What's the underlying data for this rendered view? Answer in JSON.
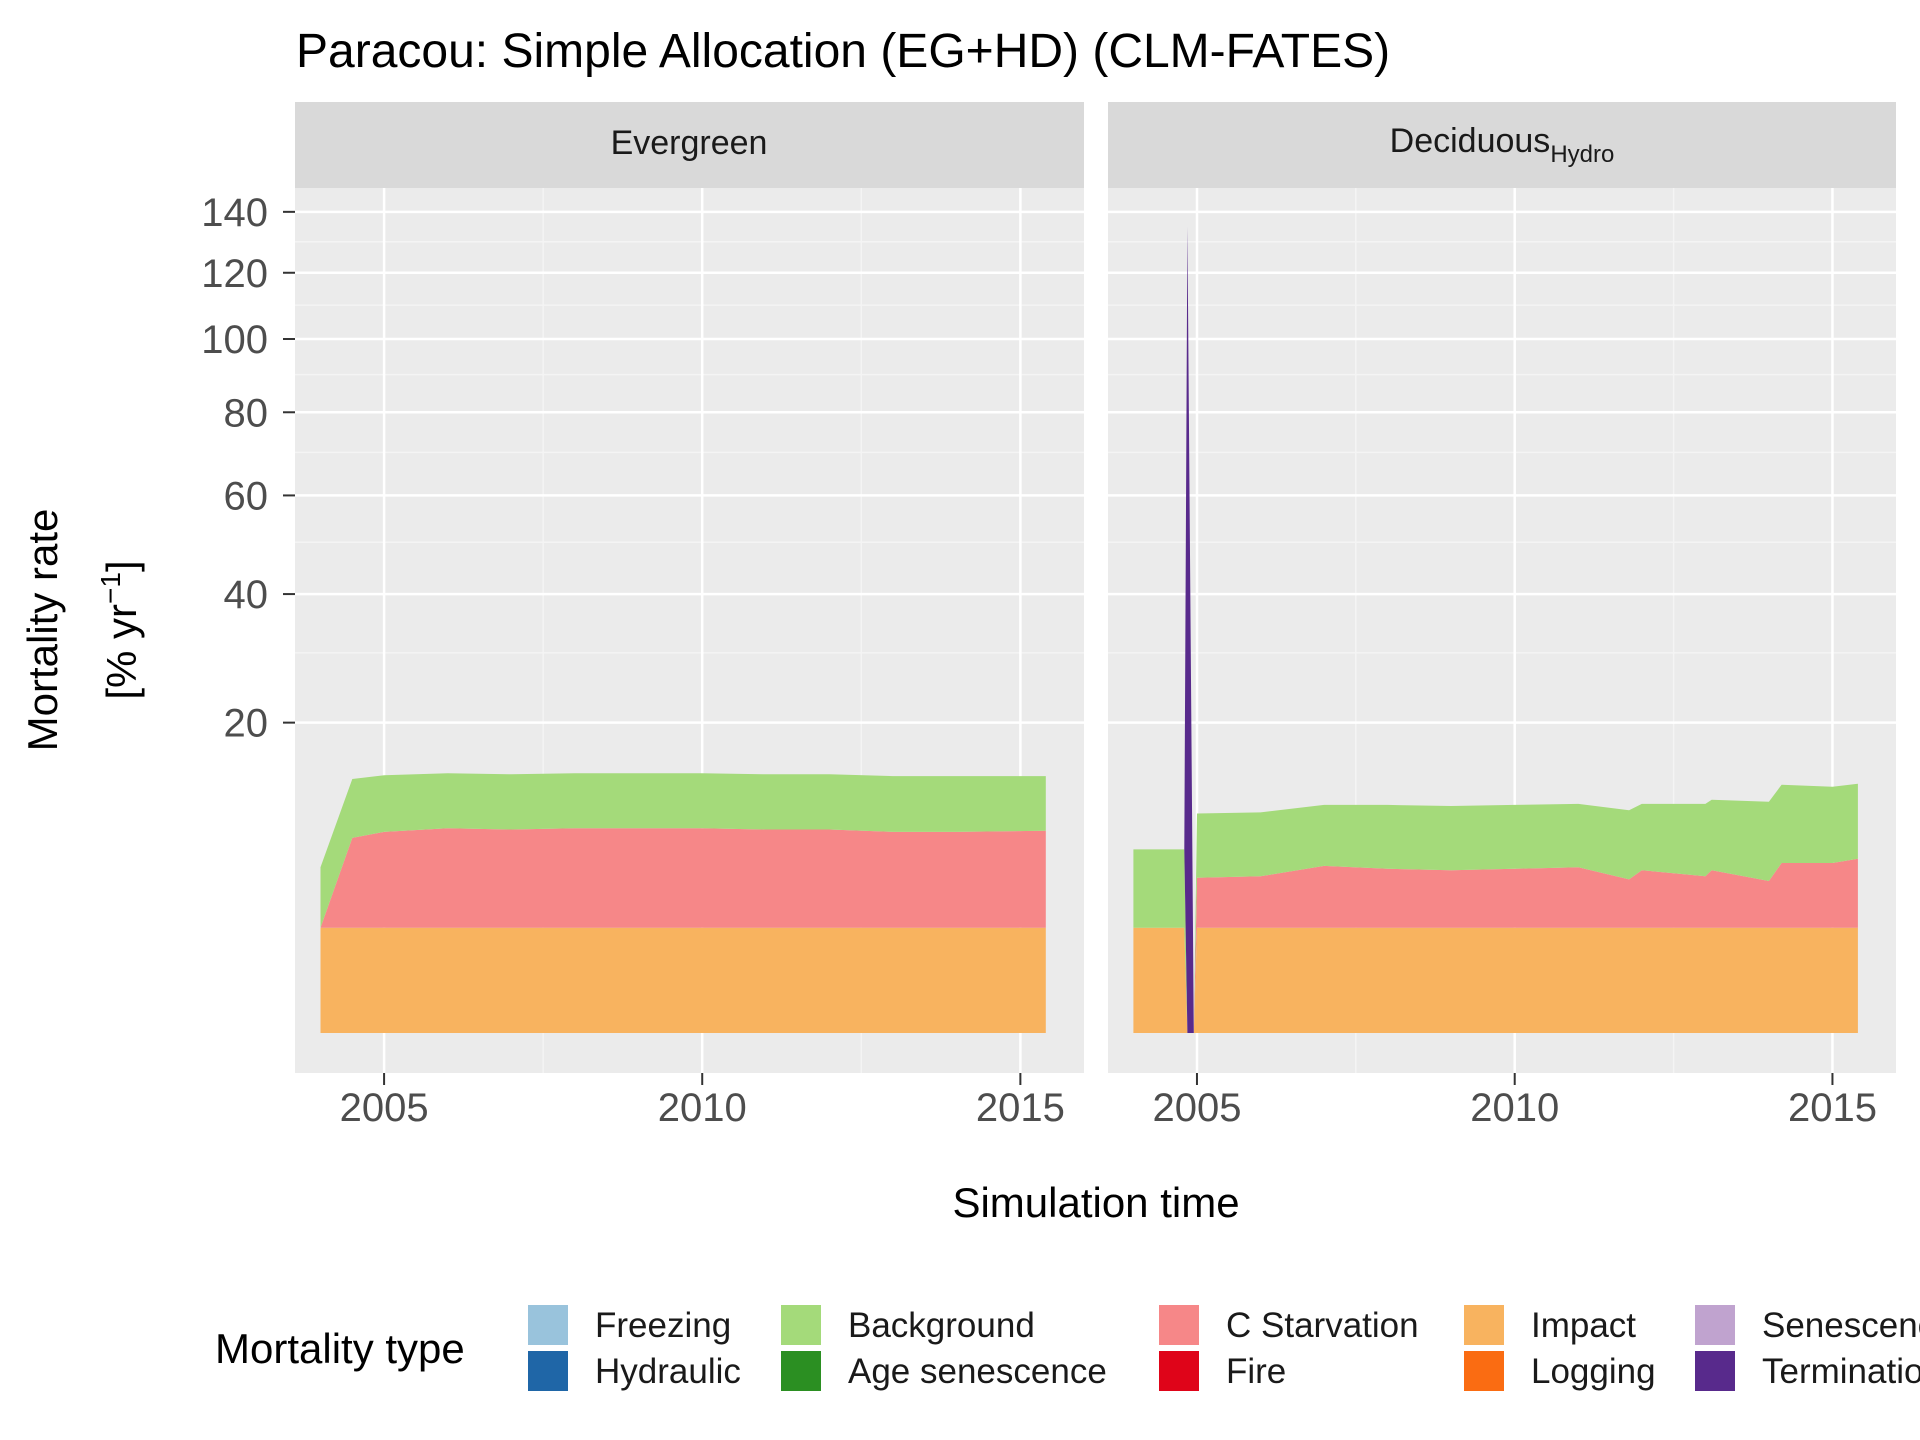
{
  "chart_data": {
    "type": "area",
    "title": "Paracou: Simple Allocation (EG+HD) (CLM-FATES)",
    "xlabel": "Simulation time",
    "ylabel_line1": "Mortality rate",
    "ylabel_line2_prefix": "[% yr",
    "ylabel_line2_sup": "−1",
    "ylabel_line2_suffix": "]",
    "y_scale": "sqrt",
    "ylim": [
      0,
      150
    ],
    "xlim": [
      2003.6,
      2016.0
    ],
    "y_ticks": [
      20,
      40,
      60,
      80,
      100,
      120,
      140
    ],
    "x_ticks": [
      2005,
      2010,
      2015
    ],
    "grid": true,
    "legend": {
      "title": "Mortality type",
      "position": "bottom",
      "entries": [
        {
          "name": "Freezing",
          "color": "#99C3DC"
        },
        {
          "name": "Hydraulic",
          "color": "#1F66A7"
        },
        {
          "name": "Background",
          "color": "#A4DA7A"
        },
        {
          "name": "Age senescence",
          "color": "#2B8F22"
        },
        {
          "name": "C Starvation",
          "color": "#F68788"
        },
        {
          "name": "Fire",
          "color": "#DF0419"
        },
        {
          "name": "Impact",
          "color": "#F8B35F"
        },
        {
          "name": "Logging",
          "color": "#FA6C12"
        },
        {
          "name": "Senescence",
          "color": "#C0A3CF"
        },
        {
          "name": "Termination",
          "color": "#582A8C"
        }
      ]
    },
    "panels": [
      {
        "strip": "Evergreen",
        "strip_sub": "",
        "x": [
          2004.0,
          2004.5,
          2005.0,
          2006.0,
          2007.0,
          2008.0,
          2009.0,
          2010.0,
          2011.0,
          2012.0,
          2013.0,
          2014.0,
          2015.4
        ],
        "series": [
          {
            "name": "Impact",
            "values": [
              2.3,
              2.3,
              2.3,
              2.3,
              2.3,
              2.3,
              2.3,
              2.3,
              2.3,
              2.3,
              2.3,
              2.3,
              2.3
            ]
          },
          {
            "name": "C Starvation",
            "values": [
              0.0,
              5.6,
              6.1,
              6.4,
              6.3,
              6.4,
              6.4,
              6.4,
              6.3,
              6.3,
              6.1,
              6.1,
              6.2
            ]
          },
          {
            "name": "Background",
            "values": [
              3.4,
              5.5,
              5.4,
              5.3,
              5.3,
              5.3,
              5.3,
              5.3,
              5.3,
              5.3,
              5.3,
              5.3,
              5.2
            ]
          },
          {
            "name": "Termination",
            "values": [
              0,
              0,
              0,
              0,
              0,
              0,
              0,
              0,
              0,
              0,
              0,
              0,
              0
            ]
          }
        ]
      },
      {
        "strip": "Deciduous",
        "strip_sub": "Hydro",
        "x": [
          2004.0,
          2004.8,
          2004.85,
          2004.95,
          2005.0,
          2006.0,
          2007.0,
          2008.0,
          2009.0,
          2010.0,
          2011.0,
          2011.8,
          2012.0,
          2013.0,
          2013.1,
          2014.0,
          2014.2,
          2015.0,
          2015.4
        ],
        "series": [
          {
            "name": "Impact",
            "values": [
              2.3,
              2.3,
              0.0,
              0.0,
              2.3,
              2.3,
              2.3,
              2.3,
              2.3,
              2.3,
              2.3,
              2.3,
              2.3,
              2.3,
              2.3,
              2.3,
              2.3,
              2.3,
              2.3
            ]
          },
          {
            "name": "C Starvation",
            "values": [
              0.0,
              0.0,
              0.0,
              0.0,
              2.7,
              2.8,
              3.5,
              3.3,
              3.2,
              3.3,
              3.4,
              2.6,
              3.2,
              2.8,
              3.2,
              2.5,
              3.7,
              3.7,
              4.0
            ]
          },
          {
            "name": "Background",
            "values": [
              4.7,
              4.7,
              0.0,
              0.0,
              5.0,
              5.0,
              5.0,
              5.2,
              5.2,
              5.2,
              5.2,
              5.4,
              5.4,
              5.8,
              5.8,
              6.3,
              6.8,
              6.6,
              6.6
            ]
          },
          {
            "name": "Termination",
            "values": [
              0.0,
              0.0,
              135.0,
              0.0,
              0.0,
              0,
              0,
              0,
              0,
              0,
              0,
              0,
              0,
              0,
              0,
              0,
              0,
              0,
              0
            ]
          }
        ]
      }
    ]
  }
}
